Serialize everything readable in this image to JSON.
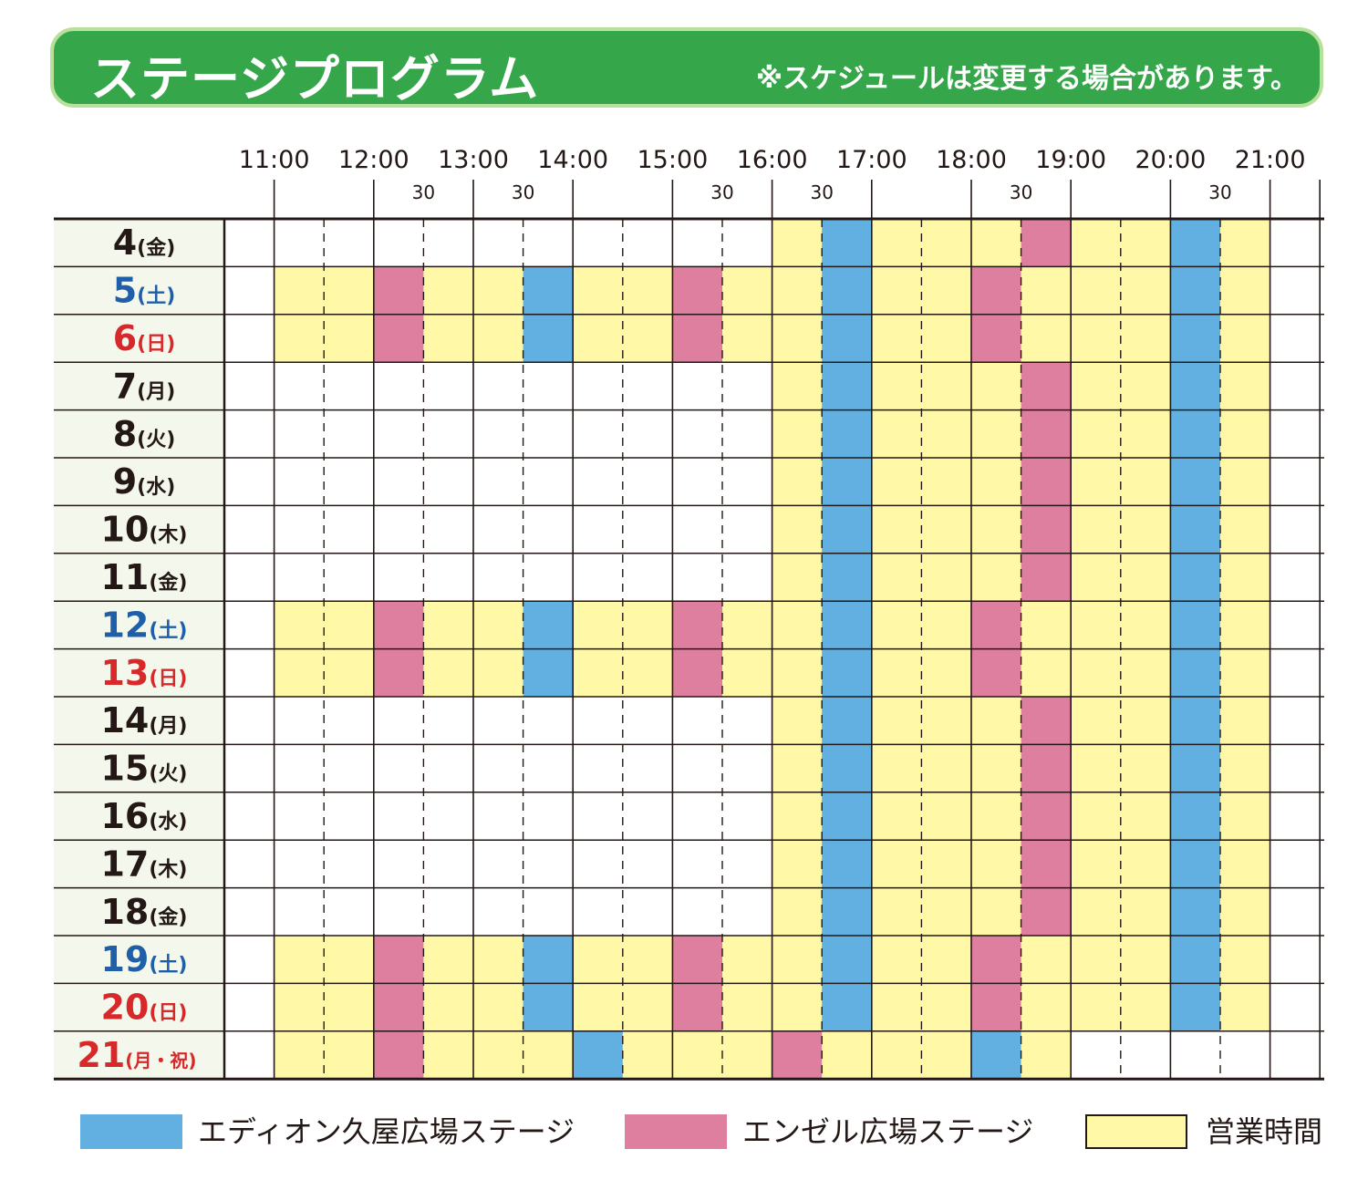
{
  "header": {
    "title": "ステージプログラム",
    "note": "※スケジュールは変更する場合があります。"
  },
  "colors": {
    "header_bg": "#35a64a",
    "header_border": "#b9e09a",
    "date_bg": "#f4f8ec",
    "eidion_stage": "#62b0e1",
    "angel_stage": "#de7fa0",
    "business_hours": "#fff8a6",
    "weekday_text": "#231815",
    "saturday_text": "#1f5ea8",
    "holiday_text": "#d7282a"
  },
  "legend": [
    {
      "key": "eidion",
      "label": "エディオン久屋広場ステージ",
      "color": "#62b0e1"
    },
    {
      "key": "angel",
      "label": "エンゼル広場ステージ",
      "color": "#de7fa0"
    },
    {
      "key": "hours",
      "label": "営業時間",
      "color": "#fff8a6"
    }
  ],
  "chart_data": {
    "type": "table",
    "time_axis": {
      "start": "10:30",
      "end": "21:30",
      "slot_minutes": 30,
      "hour_labels": [
        "11:00",
        "12:00",
        "13:00",
        "14:00",
        "15:00",
        "16:00",
        "17:00",
        "18:00",
        "19:00",
        "20:00",
        "21:00"
      ],
      "half_hour_labels": [
        {
          "label": "30",
          "time": "12:30"
        },
        {
          "label": "30",
          "time": "13:30"
        },
        {
          "label": "30",
          "time": "15:30"
        },
        {
          "label": "30",
          "time": "16:30"
        },
        {
          "label": "30",
          "time": "18:30"
        },
        {
          "label": "30",
          "time": "20:30"
        }
      ]
    },
    "rows": [
      {
        "day": "4",
        "weekday": "(金)",
        "type": "weekday",
        "hours": [
          "16:00",
          "21:00"
        ],
        "eidion": [
          [
            "16:30",
            "17:00"
          ],
          [
            "20:00",
            "20:30"
          ]
        ],
        "angel": [
          [
            "18:30",
            "19:00"
          ]
        ]
      },
      {
        "day": "5",
        "weekday": "(土)",
        "type": "saturday",
        "hours": [
          "11:00",
          "21:00"
        ],
        "eidion": [
          [
            "13:30",
            "14:00"
          ],
          [
            "16:30",
            "17:00"
          ],
          [
            "20:00",
            "20:30"
          ]
        ],
        "angel": [
          [
            "12:00",
            "12:30"
          ],
          [
            "15:00",
            "15:30"
          ],
          [
            "18:00",
            "18:30"
          ]
        ]
      },
      {
        "day": "6",
        "weekday": "(日)",
        "type": "holiday",
        "hours": [
          "11:00",
          "21:00"
        ],
        "eidion": [
          [
            "13:30",
            "14:00"
          ],
          [
            "16:30",
            "17:00"
          ],
          [
            "20:00",
            "20:30"
          ]
        ],
        "angel": [
          [
            "12:00",
            "12:30"
          ],
          [
            "15:00",
            "15:30"
          ],
          [
            "18:00",
            "18:30"
          ]
        ]
      },
      {
        "day": "7",
        "weekday": "(月)",
        "type": "weekday",
        "hours": [
          "16:00",
          "21:00"
        ],
        "eidion": [
          [
            "16:30",
            "17:00"
          ],
          [
            "20:00",
            "20:30"
          ]
        ],
        "angel": [
          [
            "18:30",
            "19:00"
          ]
        ]
      },
      {
        "day": "8",
        "weekday": "(火)",
        "type": "weekday",
        "hours": [
          "16:00",
          "21:00"
        ],
        "eidion": [
          [
            "16:30",
            "17:00"
          ],
          [
            "20:00",
            "20:30"
          ]
        ],
        "angel": [
          [
            "18:30",
            "19:00"
          ]
        ]
      },
      {
        "day": "9",
        "weekday": "(水)",
        "type": "weekday",
        "hours": [
          "16:00",
          "21:00"
        ],
        "eidion": [
          [
            "16:30",
            "17:00"
          ],
          [
            "20:00",
            "20:30"
          ]
        ],
        "angel": [
          [
            "18:30",
            "19:00"
          ]
        ]
      },
      {
        "day": "10",
        "weekday": "(木)",
        "type": "weekday",
        "hours": [
          "16:00",
          "21:00"
        ],
        "eidion": [
          [
            "16:30",
            "17:00"
          ],
          [
            "20:00",
            "20:30"
          ]
        ],
        "angel": [
          [
            "18:30",
            "19:00"
          ]
        ]
      },
      {
        "day": "11",
        "weekday": "(金)",
        "type": "weekday",
        "hours": [
          "16:00",
          "21:00"
        ],
        "eidion": [
          [
            "16:30",
            "17:00"
          ],
          [
            "20:00",
            "20:30"
          ]
        ],
        "angel": [
          [
            "18:30",
            "19:00"
          ]
        ]
      },
      {
        "day": "12",
        "weekday": "(土)",
        "type": "saturday",
        "hours": [
          "11:00",
          "21:00"
        ],
        "eidion": [
          [
            "13:30",
            "14:00"
          ],
          [
            "16:30",
            "17:00"
          ],
          [
            "20:00",
            "20:30"
          ]
        ],
        "angel": [
          [
            "12:00",
            "12:30"
          ],
          [
            "15:00",
            "15:30"
          ],
          [
            "18:00",
            "18:30"
          ]
        ]
      },
      {
        "day": "13",
        "weekday": "(日)",
        "type": "holiday",
        "hours": [
          "11:00",
          "21:00"
        ],
        "eidion": [
          [
            "13:30",
            "14:00"
          ],
          [
            "16:30",
            "17:00"
          ],
          [
            "20:00",
            "20:30"
          ]
        ],
        "angel": [
          [
            "12:00",
            "12:30"
          ],
          [
            "15:00",
            "15:30"
          ],
          [
            "18:00",
            "18:30"
          ]
        ]
      },
      {
        "day": "14",
        "weekday": "(月)",
        "type": "weekday",
        "hours": [
          "16:00",
          "21:00"
        ],
        "eidion": [
          [
            "16:30",
            "17:00"
          ],
          [
            "20:00",
            "20:30"
          ]
        ],
        "angel": [
          [
            "18:30",
            "19:00"
          ]
        ]
      },
      {
        "day": "15",
        "weekday": "(火)",
        "type": "weekday",
        "hours": [
          "16:00",
          "21:00"
        ],
        "eidion": [
          [
            "16:30",
            "17:00"
          ],
          [
            "20:00",
            "20:30"
          ]
        ],
        "angel": [
          [
            "18:30",
            "19:00"
          ]
        ]
      },
      {
        "day": "16",
        "weekday": "(水)",
        "type": "weekday",
        "hours": [
          "16:00",
          "21:00"
        ],
        "eidion": [
          [
            "16:30",
            "17:00"
          ],
          [
            "20:00",
            "20:30"
          ]
        ],
        "angel": [
          [
            "18:30",
            "19:00"
          ]
        ]
      },
      {
        "day": "17",
        "weekday": "(木)",
        "type": "weekday",
        "hours": [
          "16:00",
          "21:00"
        ],
        "eidion": [
          [
            "16:30",
            "17:00"
          ],
          [
            "20:00",
            "20:30"
          ]
        ],
        "angel": [
          [
            "18:30",
            "19:00"
          ]
        ]
      },
      {
        "day": "18",
        "weekday": "(金)",
        "type": "weekday",
        "hours": [
          "16:00",
          "21:00"
        ],
        "eidion": [
          [
            "16:30",
            "17:00"
          ],
          [
            "20:00",
            "20:30"
          ]
        ],
        "angel": [
          [
            "18:30",
            "19:00"
          ]
        ]
      },
      {
        "day": "19",
        "weekday": "(土)",
        "type": "saturday",
        "hours": [
          "11:00",
          "21:00"
        ],
        "eidion": [
          [
            "13:30",
            "14:00"
          ],
          [
            "16:30",
            "17:00"
          ],
          [
            "20:00",
            "20:30"
          ]
        ],
        "angel": [
          [
            "12:00",
            "12:30"
          ],
          [
            "15:00",
            "15:30"
          ],
          [
            "18:00",
            "18:30"
          ]
        ]
      },
      {
        "day": "20",
        "weekday": "(日)",
        "type": "holiday",
        "hours": [
          "11:00",
          "21:00"
        ],
        "eidion": [
          [
            "13:30",
            "14:00"
          ],
          [
            "16:30",
            "17:00"
          ],
          [
            "20:00",
            "20:30"
          ]
        ],
        "angel": [
          [
            "12:00",
            "12:30"
          ],
          [
            "15:00",
            "15:30"
          ],
          [
            "18:00",
            "18:30"
          ]
        ]
      },
      {
        "day": "21",
        "weekday": "(月・祝)",
        "type": "holiday",
        "hours": [
          "11:00",
          "19:00"
        ],
        "eidion": [
          [
            "14:00",
            "14:30"
          ],
          [
            "18:00",
            "18:30"
          ]
        ],
        "angel": [
          [
            "12:00",
            "12:30"
          ],
          [
            "16:00",
            "16:30"
          ]
        ]
      }
    ]
  }
}
